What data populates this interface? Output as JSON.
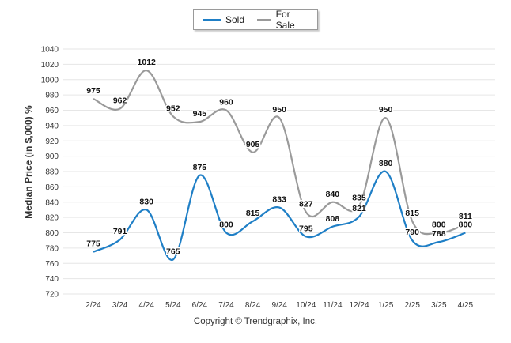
{
  "copyright": "Copyright © Trendgraphix, Inc.",
  "chart_data": {
    "type": "line",
    "title": "",
    "xlabel": "",
    "ylabel": "Median Price (in $,000) %",
    "categories": [
      "2/24",
      "3/24",
      "4/24",
      "5/24",
      "6/24",
      "7/24",
      "8/24",
      "9/24",
      "10/24",
      "11/24",
      "12/24",
      "1/25",
      "2/25",
      "3/25",
      "4/25"
    ],
    "ylim": [
      720,
      1040
    ],
    "yticks": [
      720,
      740,
      760,
      780,
      800,
      820,
      840,
      860,
      880,
      900,
      920,
      940,
      960,
      980,
      1000,
      1020,
      1040
    ],
    "grid": true,
    "legend_position": "top-center",
    "series": [
      {
        "name": "Sold",
        "color": "#1f7fc6",
        "values": [
          775,
          791,
          830,
          765,
          875,
          800,
          815,
          833,
          795,
          808,
          821,
          880,
          790,
          788,
          800
        ]
      },
      {
        "name": "For Sale",
        "color": "#9a9a9a",
        "values": [
          975,
          962,
          1012,
          952,
          945,
          960,
          905,
          950,
          827,
          840,
          835,
          950,
          815,
          800,
          811
        ]
      }
    ]
  }
}
